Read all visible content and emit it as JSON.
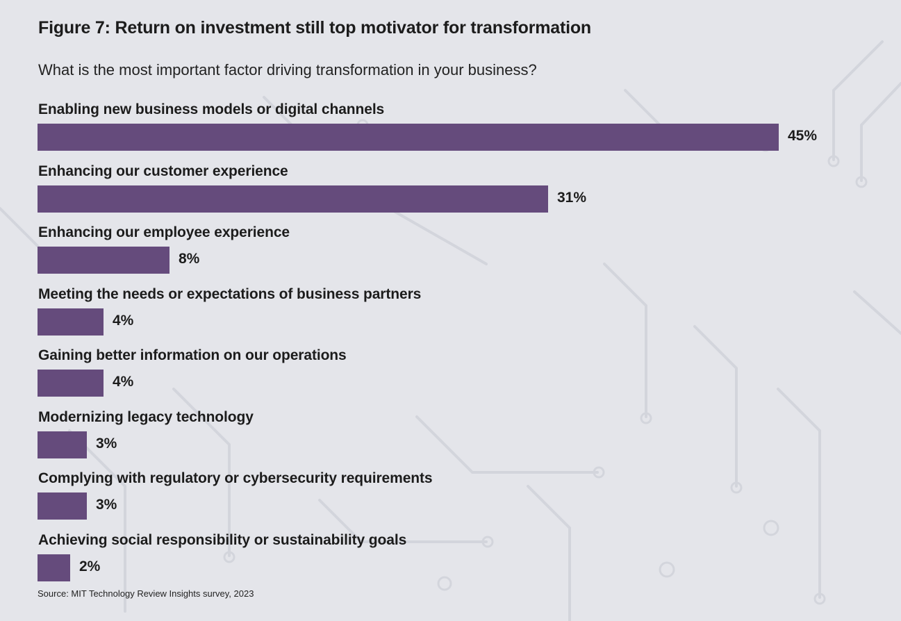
{
  "header": {
    "title": "Figure 7: Return on investment still top motivator for transformation",
    "subtitle": "What is the most important factor driving transformation in your business?"
  },
  "footer": {
    "source": "Source: MIT Technology Review Insights survey, 2023"
  },
  "colors": {
    "bar": "#654b7c",
    "background": "#e4e5ea"
  },
  "chart_data": {
    "type": "bar",
    "orientation": "horizontal",
    "title": "Figure 7: Return on investment still top motivator for transformation",
    "subtitle": "What is the most important factor driving transformation in your business?",
    "categories": [
      "Enabling new business models or digital channels",
      "Enhancing our customer experience",
      "Enhancing our employee experience",
      "Meeting the needs or expectations of business partners",
      "Gaining better information on our operations",
      "Modernizing legacy technology",
      "Complying with regulatory or cybersecurity requirements",
      "Achieving social responsibility or sustainability goals"
    ],
    "values": [
      45,
      31,
      8,
      4,
      4,
      3,
      3,
      2
    ],
    "value_labels": [
      "45%",
      "31%",
      "8%",
      "4%",
      "4%",
      "3%",
      "3%",
      "2%"
    ],
    "unit": "%",
    "xlim": [
      0,
      45
    ],
    "grid": false,
    "legend": "none"
  }
}
